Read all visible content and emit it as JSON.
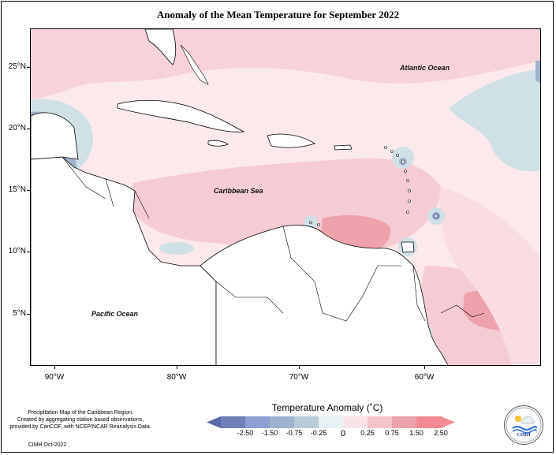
{
  "title": "Anomaly of the Mean Temperature for September 2022",
  "map": {
    "lat_labels": [
      "25°N",
      "20°N",
      "15°N",
      "10°N",
      "5°N"
    ],
    "lon_labels": [
      "90°W",
      "80°W",
      "70°W",
      "60°W"
    ],
    "region_labels": {
      "atlantic": "Atlantic Ocean",
      "caribbean": "Caribbean Sea",
      "pacific": "Pacific Ocean"
    }
  },
  "colorbar": {
    "title": "Temperature Anomaly (˚C)",
    "tick_labels": [
      "-2.50",
      "-1.50",
      "-0.75",
      "-0.25",
      "0",
      "0.25",
      "0.75",
      "1.50",
      "2.50"
    ],
    "colors": [
      "#6f7fb8",
      "#8f9fd4",
      "#9fb3ce",
      "#b7ccd8",
      "#e8f1f3",
      "#fbe4e8",
      "#f3c4cb",
      "#eea2ab",
      "#f28a94"
    ]
  },
  "credits": {
    "line1": "Precipitation Map of the Caribbean Region.",
    "line2": "Created by aggregating station based observations,",
    "line3": "provided by CariCOF, with NCEP/NCAR Reanalysis Data.",
    "date_line": "CIMH Oct-2022"
  },
  "logo": {
    "text": "CIMH"
  }
}
